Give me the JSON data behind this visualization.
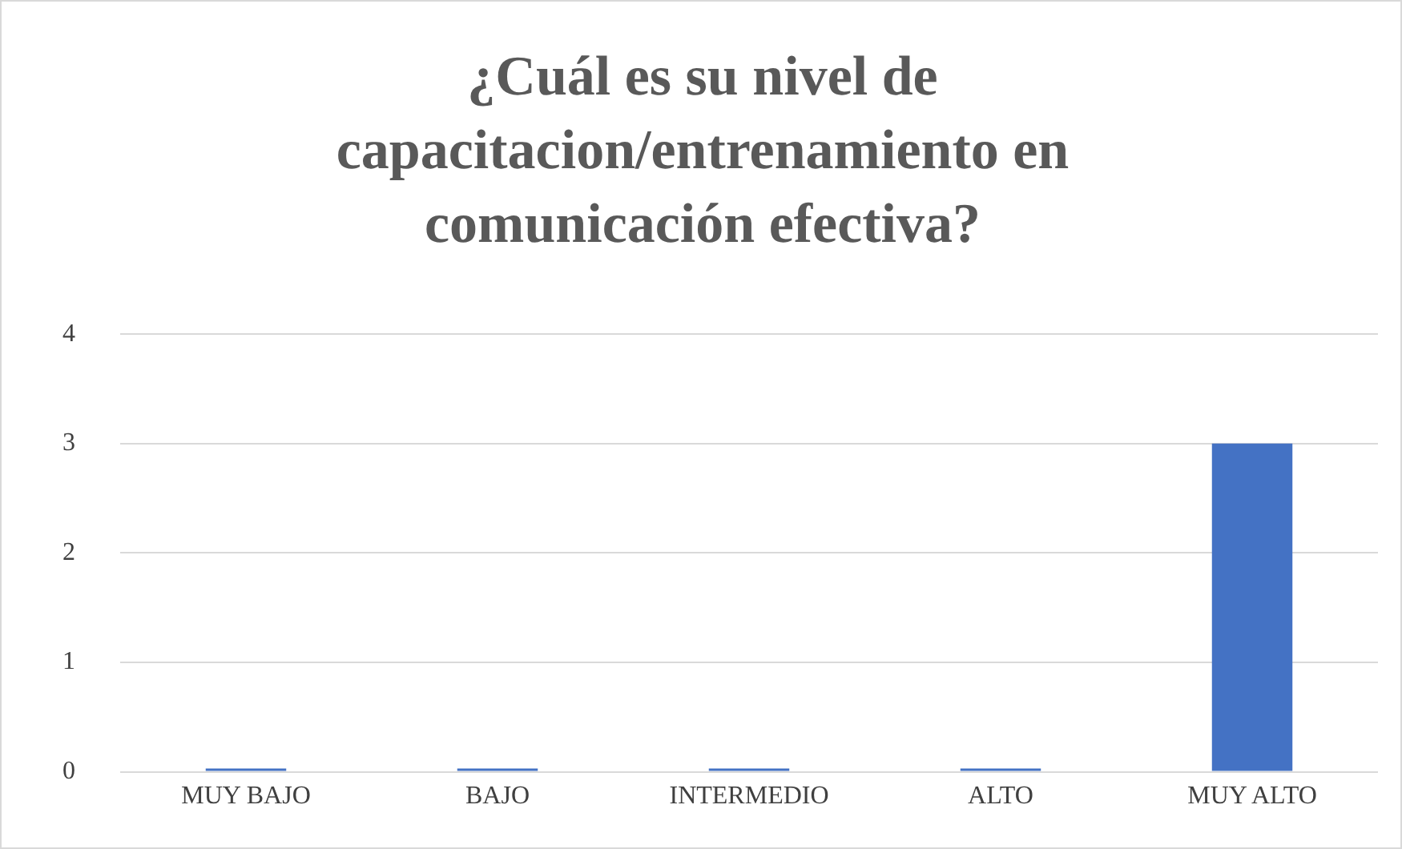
{
  "chart_data": {
    "type": "bar",
    "title": "¿Cuál es su nivel de capacitacion/entrenamiento en comunicación efectiva?",
    "categories": [
      "MUY BAJO",
      "BAJO",
      "INTERMEDIO",
      "ALTO",
      "MUY ALTO"
    ],
    "values": [
      0,
      0,
      0,
      0,
      3
    ],
    "color": "#4472c4",
    "ylim": [
      0,
      4
    ],
    "yticks": [
      0,
      1,
      2,
      3,
      4
    ],
    "grid": "y"
  }
}
